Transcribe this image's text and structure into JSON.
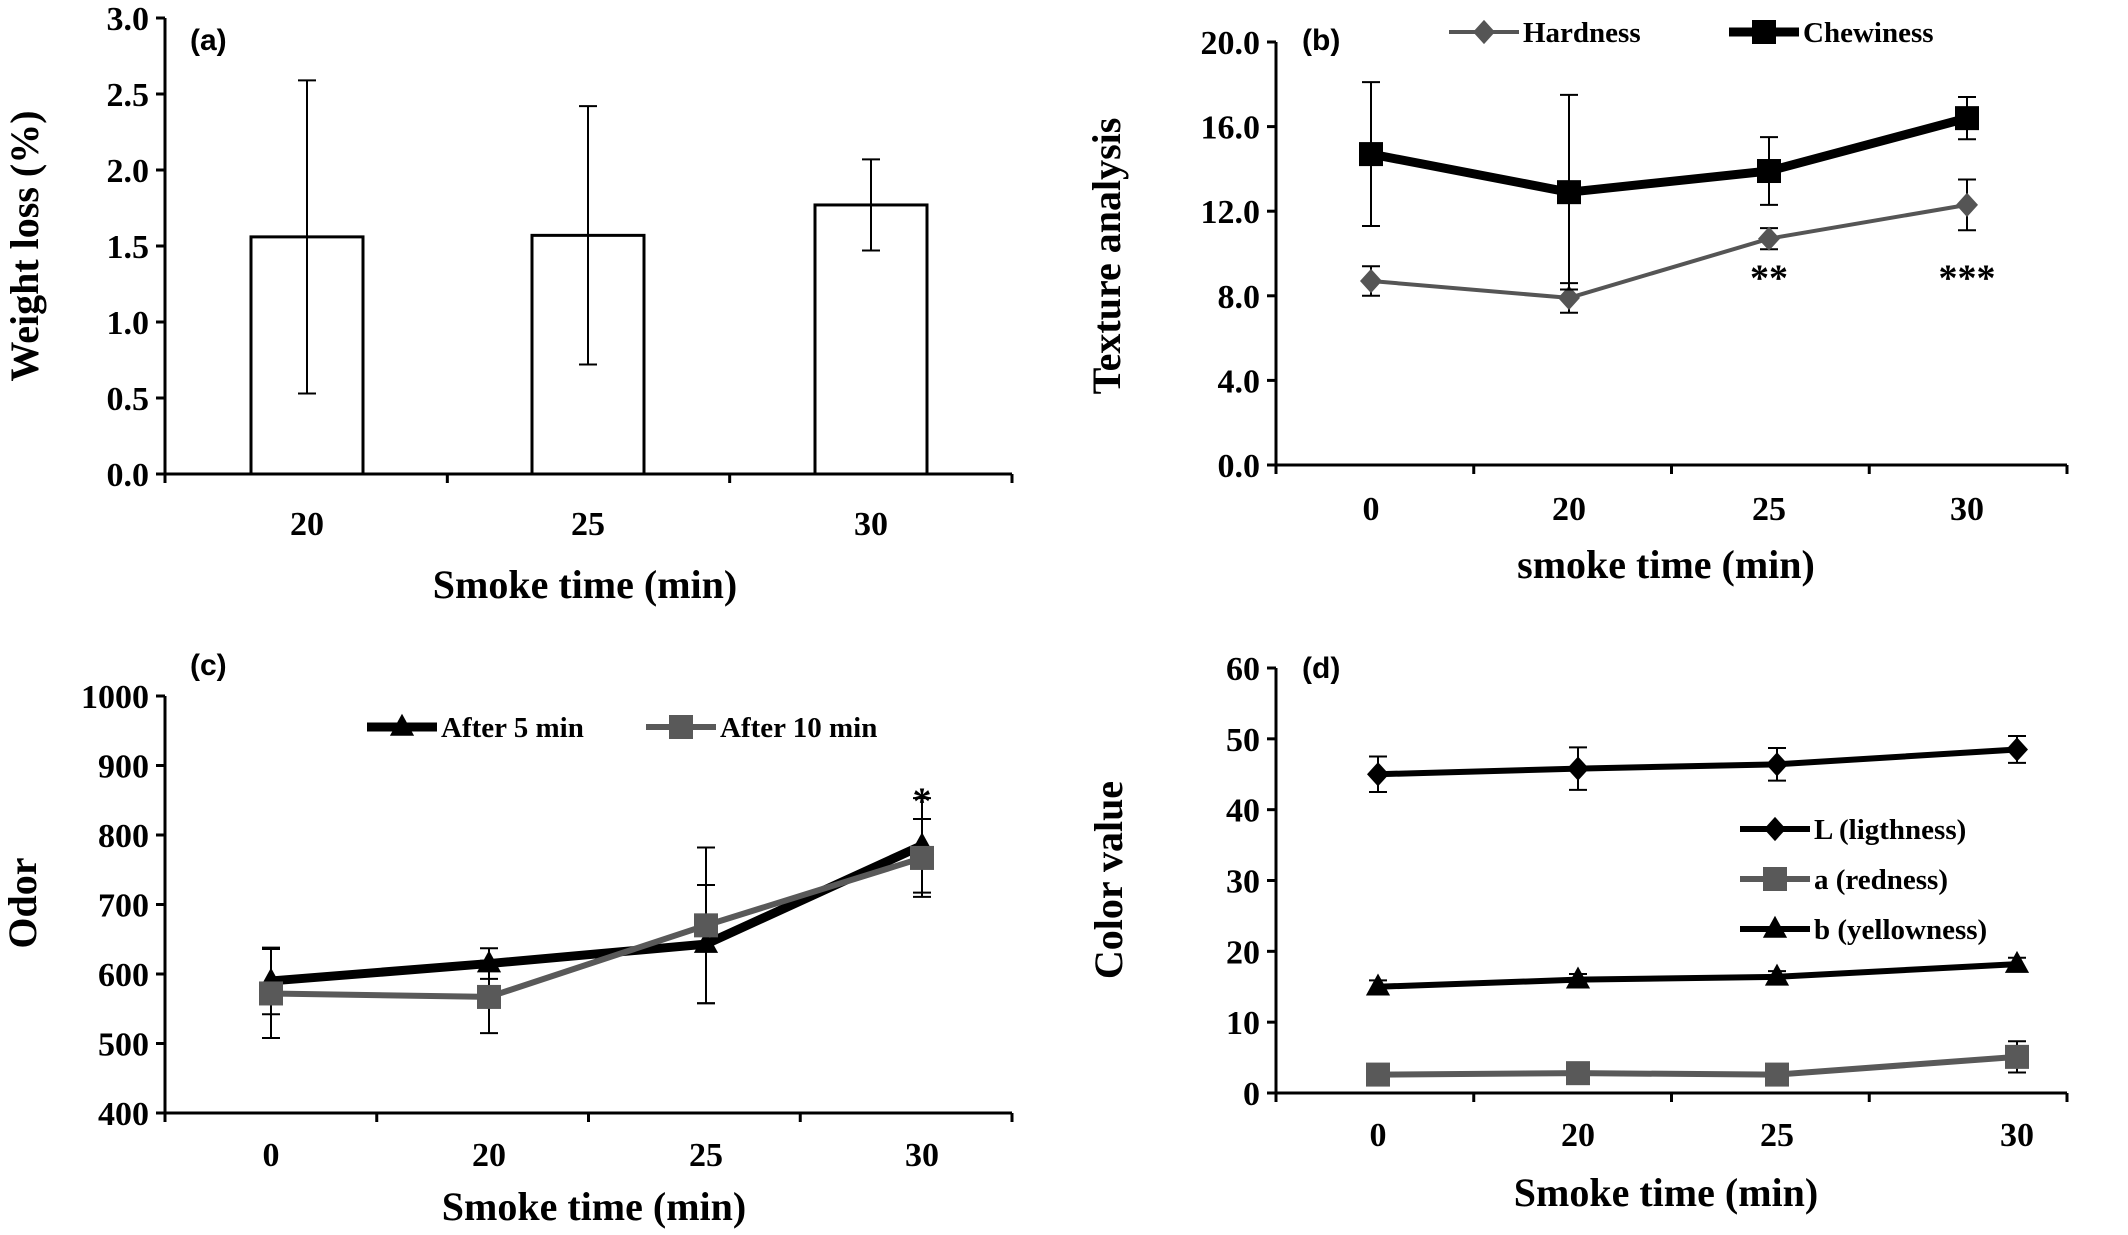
{
  "chart_data": [
    {
      "panel": "(a)",
      "type": "bar",
      "xlabel": "Smoke time (min)",
      "ylabel": "Weight loss (%)",
      "categories": [
        "20",
        "25",
        "30"
      ],
      "values": [
        1.56,
        1.57,
        1.77
      ],
      "errors": [
        1.03,
        0.85,
        0.3
      ],
      "ylim": [
        0,
        3
      ],
      "yticks": [
        "0.0",
        "0.5",
        "1.0",
        "1.5",
        "2.0",
        "2.5",
        "3.0"
      ],
      "grid": false,
      "bar_color": "#ffffff",
      "edge_color": "#000000"
    },
    {
      "panel": "(b)",
      "type": "line",
      "xlabel": "smoke time (min)",
      "ylabel": "Texture analysis",
      "categories": [
        "0",
        "20",
        "25",
        "30"
      ],
      "ylim": [
        0,
        20
      ],
      "yticks": [
        "0.0",
        "4.0",
        "8.0",
        "12.0",
        "16.0",
        "20.0"
      ],
      "grid": false,
      "legend_position": "top",
      "series": [
        {
          "name": "Hardness",
          "values": [
            8.7,
            7.9,
            10.7,
            12.3
          ],
          "errors": [
            0.7,
            0.7,
            0.5,
            1.2
          ],
          "marker": "diamond",
          "color": "#555555"
        },
        {
          "name": "Chewiness",
          "values": [
            14.7,
            12.9,
            13.9,
            16.4
          ],
          "errors": [
            3.4,
            4.6,
            1.6,
            1.0
          ],
          "marker": "square",
          "color": "#000000"
        }
      ],
      "annotations": [
        {
          "text": "**",
          "category": "25",
          "value": 9.2
        },
        {
          "text": "***",
          "category": "30",
          "value": 9.2
        }
      ]
    },
    {
      "panel": "(c)",
      "type": "line",
      "xlabel": "Smoke time (min)",
      "ylabel": "Odor",
      "categories": [
        "0",
        "20",
        "25",
        "30"
      ],
      "ylim": [
        400,
        1000
      ],
      "yticks": [
        "400",
        "500",
        "600",
        "700",
        "800",
        "900",
        "1000"
      ],
      "grid": false,
      "legend_position": "top",
      "series": [
        {
          "name": "After 5 min",
          "values": [
            590,
            615,
            643,
            785
          ],
          "errors": [
            48,
            22,
            85,
            68
          ],
          "marker": "triangle",
          "color": "#000000"
        },
        {
          "name": "After 10 min",
          "values": [
            572,
            567,
            670,
            767
          ],
          "errors": [
            64,
            52,
            112,
            56
          ],
          "marker": "square",
          "color": "#595959"
        }
      ],
      "annotations": [
        {
          "text": "*",
          "category": "30",
          "value": 860
        }
      ]
    },
    {
      "panel": "(d)",
      "type": "line",
      "xlabel": "Smoke time (min)",
      "ylabel": "Color value",
      "categories": [
        "0",
        "20",
        "25",
        "30"
      ],
      "ylim": [
        0,
        60
      ],
      "yticks": [
        "0",
        "10",
        "20",
        "30",
        "40",
        "50",
        "60"
      ],
      "grid": false,
      "legend_position": "center-right",
      "series": [
        {
          "name": "L (ligthness)",
          "values": [
            45.0,
            45.8,
            46.4,
            48.5
          ],
          "errors": [
            2.5,
            3.0,
            2.3,
            1.9
          ],
          "marker": "diamond",
          "color": "#000000"
        },
        {
          "name": "a (redness)",
          "values": [
            2.6,
            2.8,
            2.6,
            5.1
          ],
          "errors": [
            0.6,
            0.6,
            1.5,
            2.2
          ],
          "marker": "square",
          "color": "#595959"
        },
        {
          "name": "b (yellowness)",
          "values": [
            15.0,
            16.0,
            16.4,
            18.2
          ],
          "errors": [
            0.9,
            0.8,
            0.8,
            0.9
          ],
          "marker": "triangle",
          "color": "#000000"
        }
      ]
    }
  ]
}
